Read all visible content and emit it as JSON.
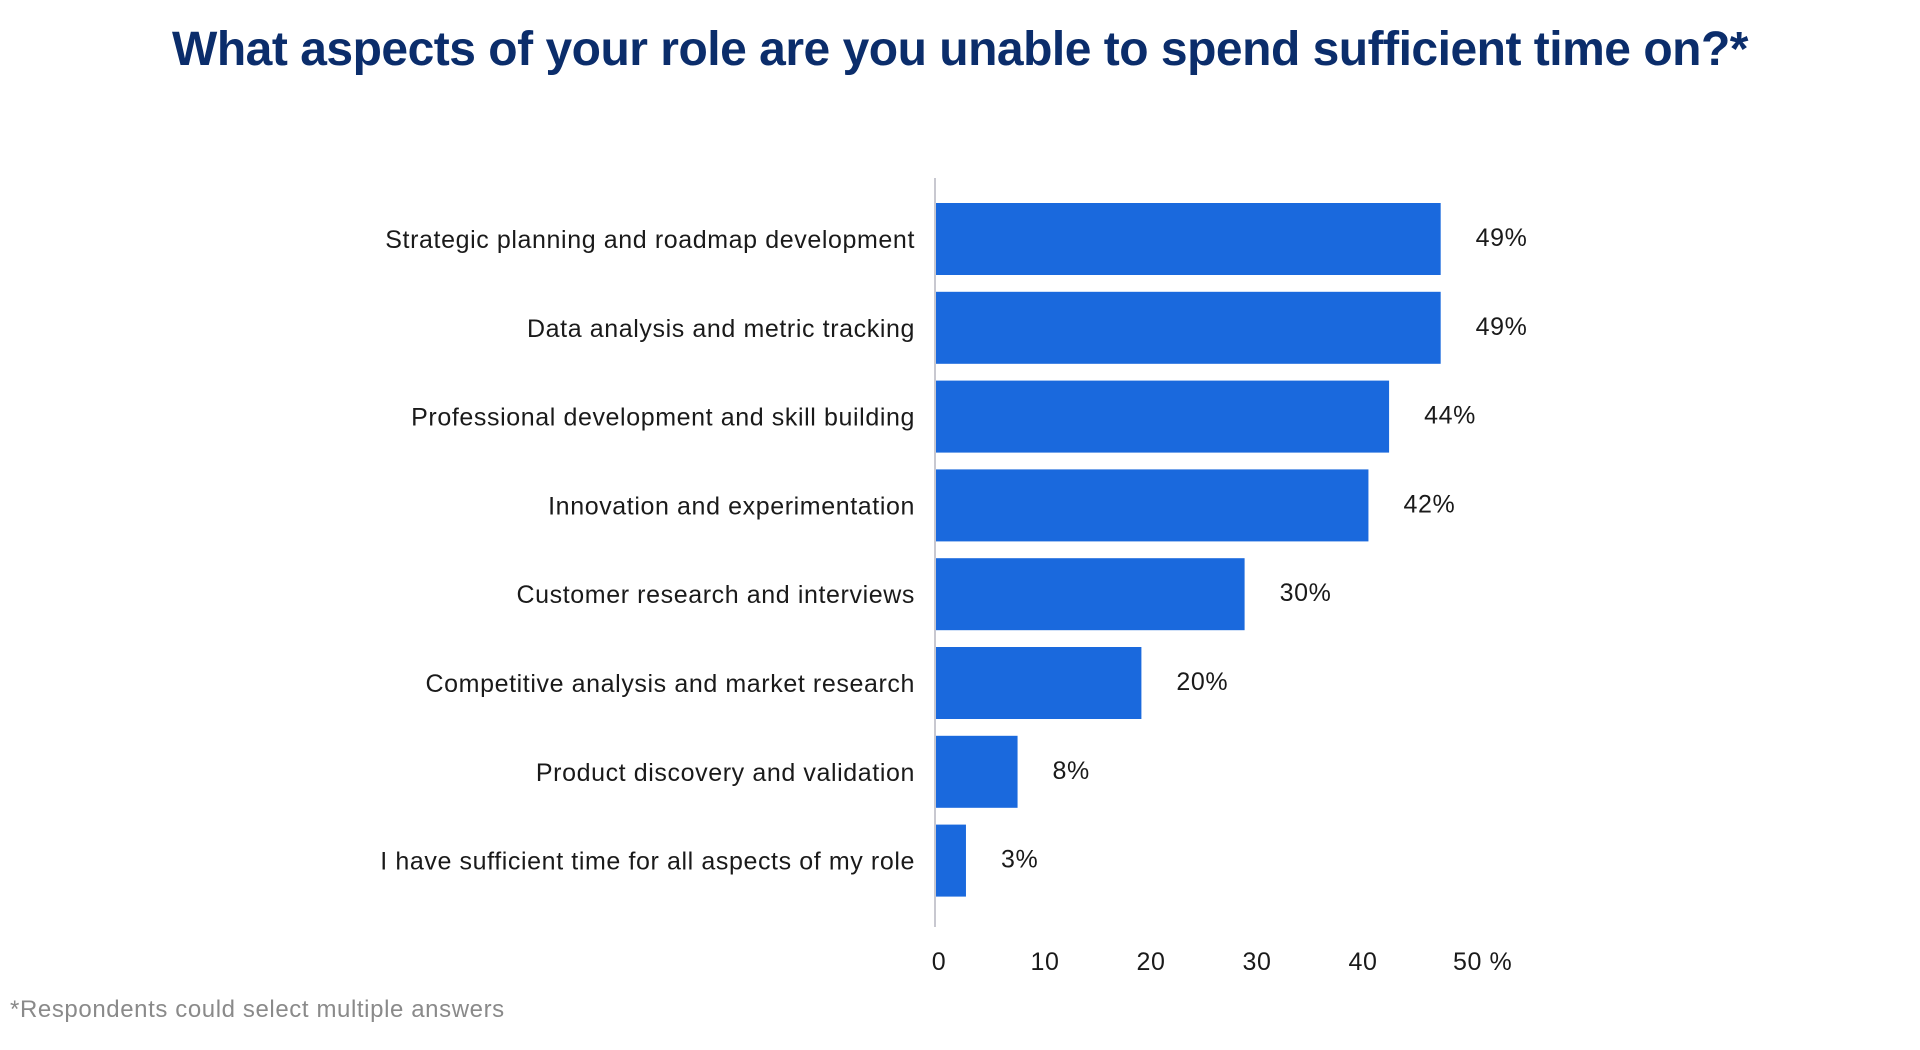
{
  "chart_data": {
    "type": "bar",
    "orientation": "horizontal",
    "title": "What aspects of your role are you unable to spend sufficient time on?*",
    "categories": [
      "Strategic planning and roadmap development",
      "Data analysis and metric tracking",
      "Professional development and skill building",
      "Innovation and experimentation",
      "Customer research and interviews",
      "Competitive analysis and market research",
      "Product discovery and validation",
      "I have sufficient time for all aspects of my role"
    ],
    "values": [
      49,
      49,
      44,
      42,
      30,
      20,
      8,
      3
    ],
    "value_labels": [
      "49%",
      "49%",
      "44%",
      "42%",
      "30%",
      "20%",
      "8%",
      "3%"
    ],
    "xticks": [
      0,
      10,
      20,
      30,
      40,
      50
    ],
    "xtick_labels": [
      "0",
      "10",
      "20",
      "30",
      "40",
      "50 %"
    ],
    "xlim": [
      0,
      50
    ],
    "xlabel": "",
    "ylabel": "",
    "grid": false,
    "bar_color": "#1a69dd",
    "footnote": "*Respondents could select multiple answers"
  }
}
